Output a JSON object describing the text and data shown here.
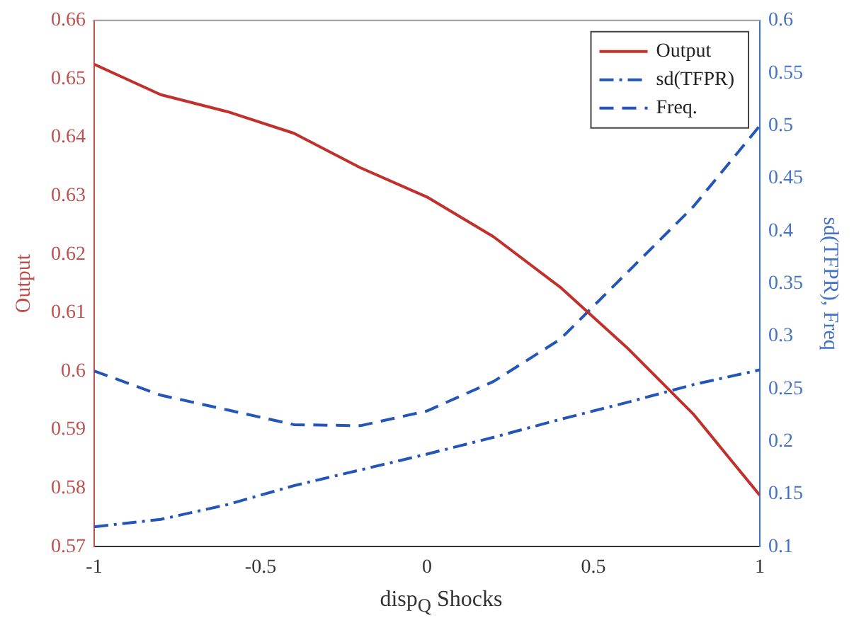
{
  "chart_data": {
    "type": "line",
    "xlabel": "disp$_{Q}$ Shocks",
    "ylabel": "Output",
    "y2label": "sd(TFPR), Freq",
    "x": [
      -1,
      -0.8,
      -0.6,
      -0.4,
      -0.2,
      0,
      0.2,
      0.4,
      0.6,
      0.8,
      1
    ],
    "series": [
      {
        "name": "Output",
        "color": "#c0302c",
        "line_style": "solid",
        "values": [
          0.6525,
          0.6473,
          0.6444,
          0.6407,
          0.6348,
          0.6298,
          0.623,
          0.6144,
          0.6041,
          0.5927,
          0.5788
        ]
      },
      {
        "name": "sd(TFPR)",
        "color": "#2456b8",
        "line_style": "dashdot",
        "axis": "y2",
        "values": [
          0.119,
          0.126,
          0.14,
          0.158,
          0.173,
          0.188,
          0.204,
          0.221,
          0.237,
          0.254,
          0.268
        ]
      },
      {
        "name": "Freq.",
        "color": "#2456b8",
        "line_style": "dashed",
        "axis": "y2",
        "values": [
          0.267,
          0.244,
          0.23,
          0.216,
          0.215,
          0.229,
          0.257,
          0.297,
          0.36,
          0.423,
          0.5
        ]
      }
    ],
    "xlim": [
      -1,
      1
    ],
    "xticks": [
      -1,
      -0.5,
      0,
      0.5,
      1
    ],
    "ylim": [
      0.57,
      0.66
    ],
    "yticks": [
      0.57,
      0.58,
      0.59,
      0.6,
      0.61,
      0.62,
      0.63,
      0.64,
      0.65,
      0.66
    ],
    "y2lim": [
      0.1,
      0.6
    ],
    "y2ticks": [
      0.1,
      0.15,
      0.2,
      0.25,
      0.3,
      0.35,
      0.4,
      0.45,
      0.5,
      0.55,
      0.6
    ],
    "legend": "top right",
    "grid": false,
    "marker": "none"
  }
}
